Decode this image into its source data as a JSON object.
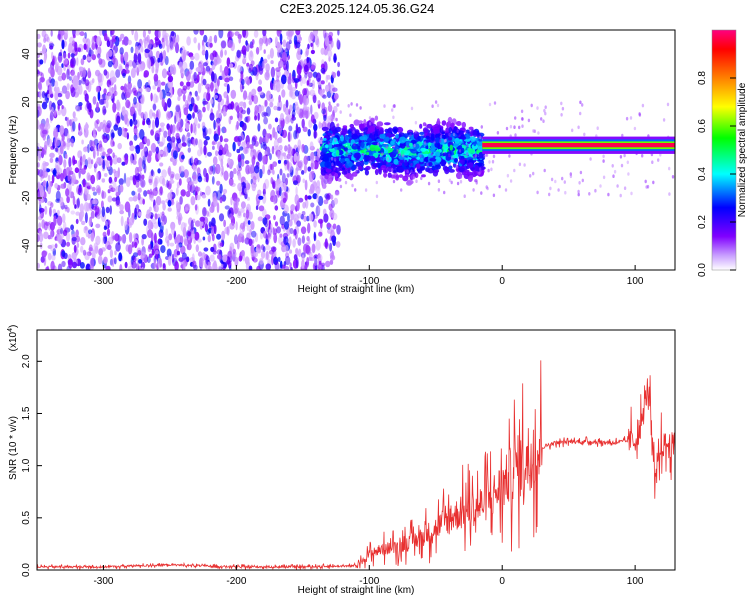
{
  "figure": {
    "title": "C2E3.2025.124.05.36.G24"
  },
  "chart_data": [
    {
      "type": "heatmap",
      "xlabel": "Height of straight line (km)",
      "ylabel": "Frequency (Hz)",
      "xlim": [
        -350,
        130
      ],
      "ylim": [
        -50,
        50
      ],
      "x_ticks": [
        -300,
        -200,
        -100,
        0,
        100
      ],
      "x_tick_labels": [
        "-300",
        "-200",
        "-100",
        "0",
        "100"
      ],
      "y_ticks": [
        -40,
        -20,
        0,
        20,
        40
      ],
      "y_tick_labels": [
        "-40",
        "-20",
        "0",
        "20",
        "40"
      ],
      "colorbar": {
        "label": "Normalized spectral amplitude",
        "range": [
          0,
          1
        ],
        "ticks": [
          0.0,
          0.2,
          0.4,
          0.6,
          0.8
        ],
        "tick_labels": [
          "0.0",
          "0.2",
          "0.4",
          "0.6",
          "0.8"
        ],
        "colormap": [
          "#ffffff",
          "#8000ff",
          "#0000ff",
          "#00ffff",
          "#00ff00",
          "#ffff00",
          "#ff8000",
          "#ff0000",
          "#ff0080"
        ]
      },
      "regions": [
        {
          "x_range": [
            -350,
            -135
          ],
          "freq_range": [
            -50,
            50
          ],
          "amplitude": "low (noise)"
        },
        {
          "x_range": [
            -135,
            -15
          ],
          "freq_center": 0,
          "freq_spread": 10,
          "amplitude": "medium"
        },
        {
          "x_range": [
            -15,
            130
          ],
          "freq_center": 2,
          "freq_spread": 2,
          "amplitude": "high (~0.9)"
        }
      ],
      "grid": false
    },
    {
      "type": "line",
      "xlabel": "Height of straight line (km)",
      "ylabel": "SNR (10 * v/v)",
      "y_scale_label": "(x10",
      "y_scale_exponent": "4",
      "xlim": [
        -350,
        130
      ],
      "ylim": [
        0,
        23000
      ],
      "x_ticks": [
        -300,
        -200,
        -100,
        0,
        100
      ],
      "x_tick_labels": [
        "-300",
        "-200",
        "-100",
        "0",
        "100"
      ],
      "y_ticks": [
        0,
        5000,
        10000,
        15000,
        20000
      ],
      "y_tick_labels": [
        "0.0",
        "0.5",
        "1.0",
        "1.5",
        "2.0"
      ],
      "color": "#e83030",
      "series": [
        {
          "x": [
            -350,
            -300,
            -250,
            -200,
            -150,
            -110,
            -100,
            -90,
            -80,
            -70,
            -60,
            -50,
            -40,
            -30,
            -20,
            -10,
            0,
            10,
            20,
            30,
            40,
            50,
            60,
            70,
            80,
            90,
            100,
            105,
            110,
            115,
            120,
            130
          ],
          "y": [
            300,
            300,
            500,
            300,
            300,
            400,
            1500,
            2000,
            2200,
            2600,
            3200,
            4000,
            5000,
            5500,
            6000,
            6800,
            8000,
            9800,
            11000,
            11800,
            12200,
            12300,
            12300,
            12300,
            12200,
            12300,
            12500,
            14000,
            18000,
            8000,
            12000,
            12000
          ]
        }
      ],
      "grid": false
    }
  ]
}
